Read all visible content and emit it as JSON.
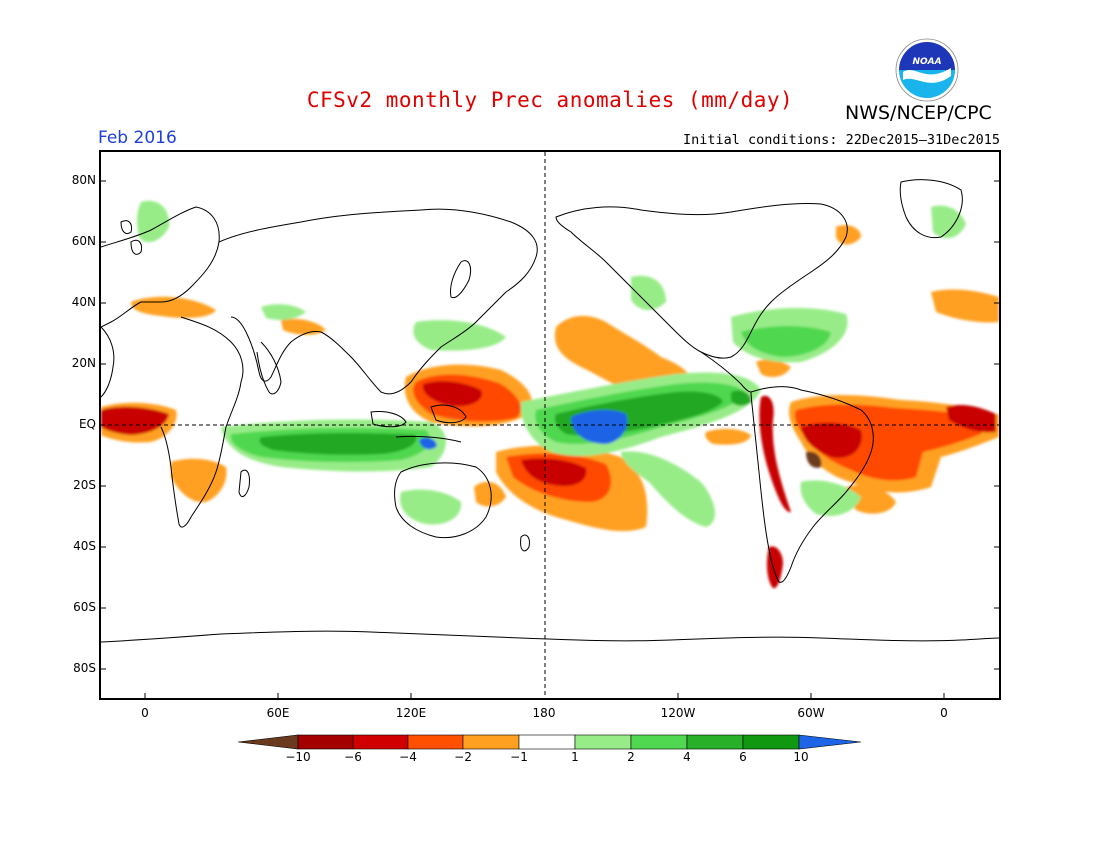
{
  "title": "CFSv2 monthly Prec anomalies (mm/day)",
  "agency": "NWS/NCEP/CPC",
  "logo_text": "NOAA",
  "period": "Feb 2016",
  "initial_conditions": "Initial conditions: 22Dec2015–31Dec2015",
  "y_axis_labels": [
    "80N",
    "60N",
    "40N",
    "20N",
    "EQ",
    "20S",
    "40S",
    "60S",
    "80S"
  ],
  "x_axis_labels": [
    "0",
    "60E",
    "120E",
    "180",
    "120W",
    "60W",
    "0"
  ],
  "colorbar": {
    "ticks": [
      "−10",
      "−6",
      "−4",
      "−2",
      "−1",
      "1",
      "2",
      "4",
      "6",
      "10"
    ],
    "colors": [
      "#6b3a1e",
      "#a50000",
      "#d00000",
      "#ff5000",
      "#ffa020",
      "#ffffff",
      "#98ec88",
      "#50d850",
      "#28b028",
      "#109810",
      "#1e64e6"
    ]
  },
  "map_colors": {
    "dry_extreme": "#6b3a1e",
    "dry_strong": "#c80000",
    "dry_moderate": "#ff5a00",
    "dry_light": "#ffa020",
    "wet_light": "#98ec88",
    "wet_moderate": "#50d850",
    "wet_strong": "#20a820",
    "wet_extreme": "#1e64e6"
  }
}
